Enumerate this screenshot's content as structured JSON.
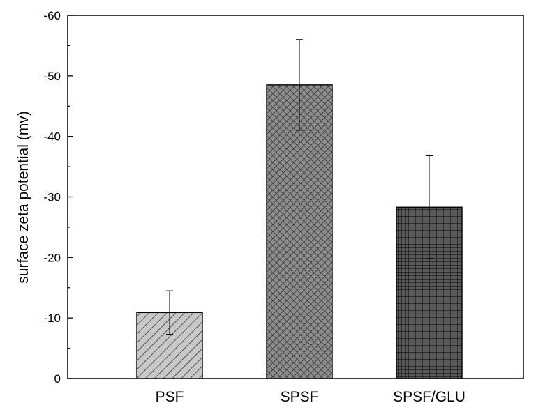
{
  "chart_data": {
    "type": "bar",
    "title": "",
    "xlabel": "",
    "ylabel": "surface zeta potential  (mv)",
    "categories": [
      "PSF",
      "SPSF",
      "SPSF/GLU"
    ],
    "values": [
      -10.9,
      -48.5,
      -28.3
    ],
    "error": [
      3.6,
      7.5,
      8.5
    ],
    "ylim": [
      0,
      -60
    ],
    "yticks": [
      0,
      -10,
      -20,
      -30,
      -40,
      -50,
      -60
    ],
    "ytick_labels": [
      "0",
      "-10",
      "-20",
      "-30",
      "-40",
      "-50",
      "-60"
    ],
    "grid": false,
    "bar_patterns": [
      "diagonal-hatch",
      "diamond-crosshatch",
      "square-grid"
    ]
  }
}
